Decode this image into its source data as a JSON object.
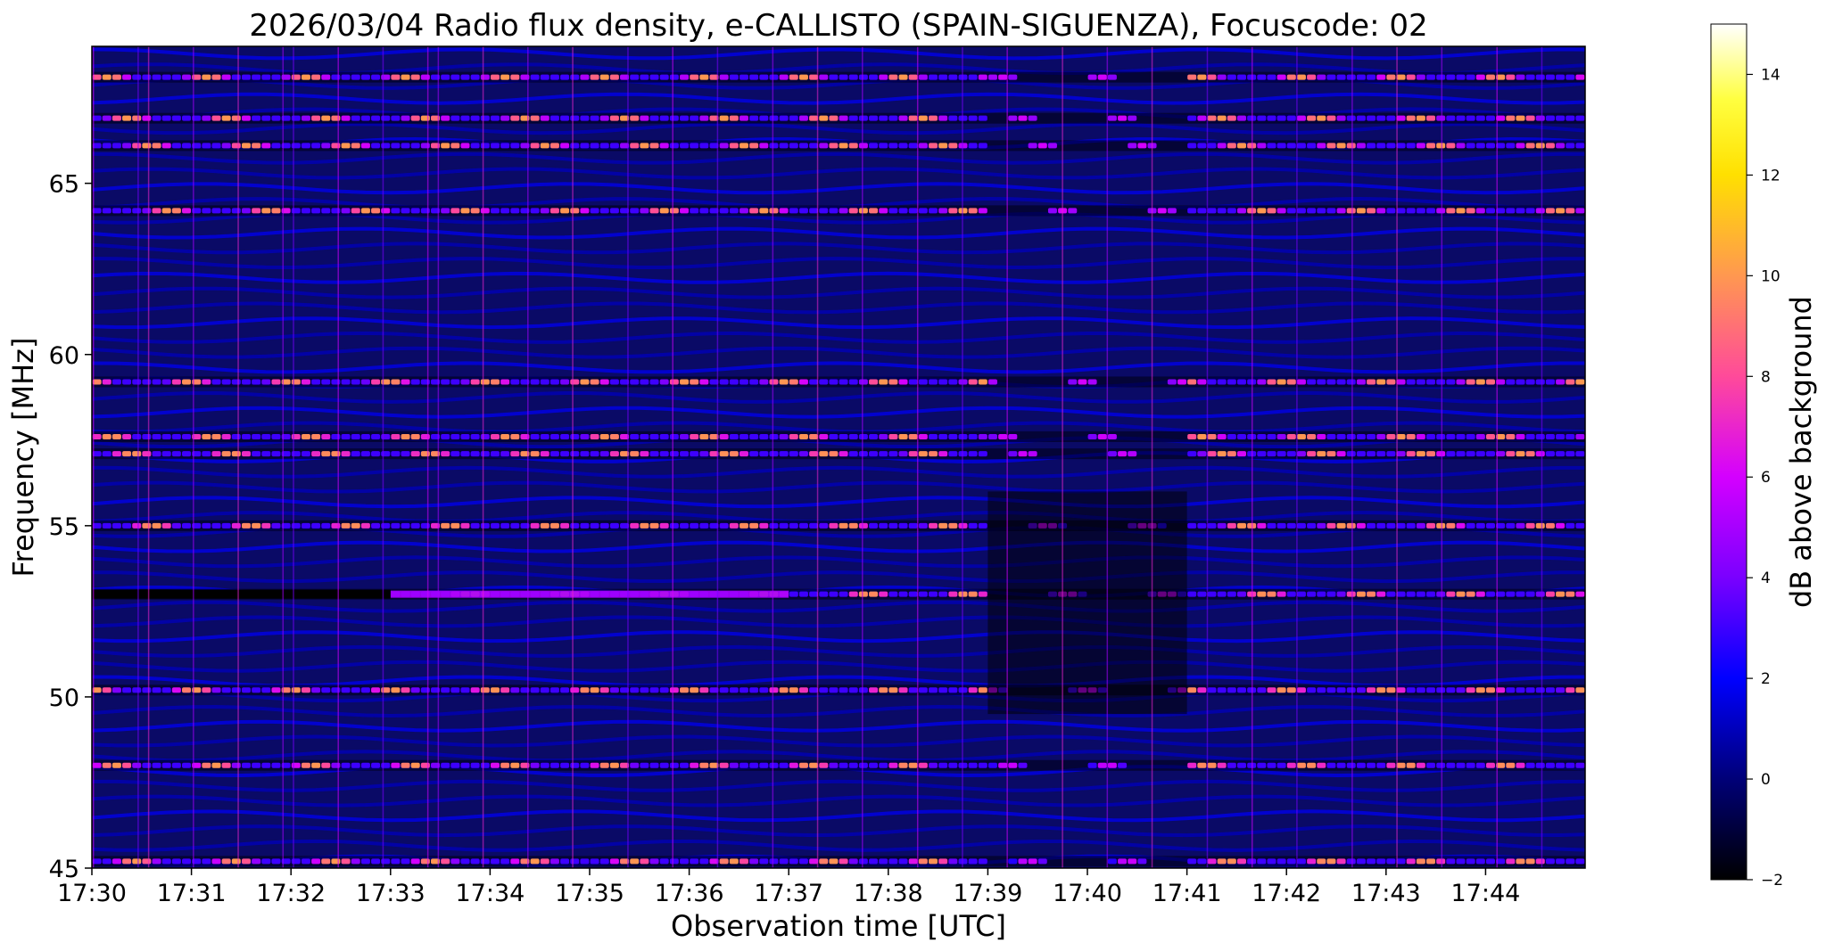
{
  "chart_data": {
    "type": "heatmap",
    "title": "2026/03/04  Radio flux density, e-CALLISTO (SPAIN-SIGUENZA), Focuscode: 02",
    "xlabel": "Observation time [UTC]",
    "ylabel": "Frequency [MHz]",
    "colorbar_label": "dB above background",
    "x_range": [
      "17:30",
      "17:45"
    ],
    "x_tick_labels": [
      "17:30",
      "17:31",
      "17:32",
      "17:33",
      "17:34",
      "17:35",
      "17:36",
      "17:37",
      "17:38",
      "17:39",
      "17:40",
      "17:41",
      "17:42",
      "17:43",
      "17:44"
    ],
    "ylim": [
      45,
      69
    ],
    "y_ticks": [
      45,
      50,
      55,
      60,
      65
    ],
    "colorbar_range": [
      -2,
      15
    ],
    "colorbar_ticks": [
      -2,
      0,
      2,
      4,
      6,
      8,
      10,
      12,
      14
    ],
    "colormap": [
      "#000000",
      "#000078",
      "#0000ff",
      "#7a00ff",
      "#ff00ff",
      "#ff6a8a",
      "#ffa040",
      "#ffe000",
      "#ffff00",
      "#ffffff"
    ],
    "features": {
      "persistent_bands_mhz": [
        45.2,
        48,
        50.2,
        53,
        55,
        57.1,
        57.6,
        59.2,
        64.2,
        66.1,
        66.9,
        68.1
      ],
      "narrowband_line_mhz": 53,
      "narrowband_line_window": [
        "17:33",
        "17:37"
      ],
      "quiet_interval": [
        "17:39",
        "17:41"
      ],
      "background_level_db": 1
    }
  }
}
